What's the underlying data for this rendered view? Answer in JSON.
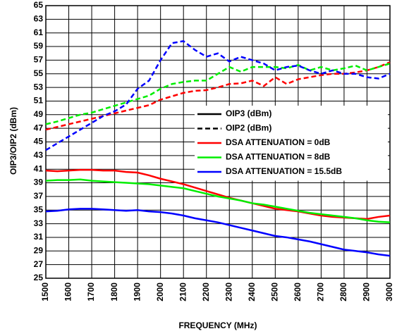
{
  "chart_data": {
    "type": "line",
    "xlabel": "FREQUENCY (MHz)",
    "ylabel": "OIP3/OIP2 (dBm)",
    "x": [
      1500,
      1550,
      1600,
      1650,
      1700,
      1750,
      1800,
      1850,
      1900,
      1950,
      2000,
      2050,
      2100,
      2150,
      2200,
      2250,
      2300,
      2350,
      2400,
      2450,
      2500,
      2550,
      2600,
      2650,
      2700,
      2750,
      2800,
      2850,
      2900,
      2950,
      3000
    ],
    "xlim": [
      1500,
      3000
    ],
    "xticks": [
      1500,
      1600,
      1700,
      1800,
      1900,
      2000,
      2100,
      2200,
      2300,
      2400,
      2500,
      2600,
      2700,
      2800,
      2900,
      3000
    ],
    "ylim": [
      25,
      65
    ],
    "yticks": [
      25,
      27,
      29,
      31,
      33,
      35,
      37,
      39,
      41,
      43,
      45,
      47,
      49,
      51,
      53,
      55,
      57,
      59,
      61,
      63,
      65
    ],
    "grid": true,
    "legend": [
      {
        "label": "OIP3 (dBm)",
        "color": "#000000",
        "dashed": false
      },
      {
        "label": "OIP2 (dBm)",
        "color": "#000000",
        "dashed": true
      },
      {
        "label": "DSA ATTENUATION = 0dB",
        "color": "#ff0000",
        "dashed": false
      },
      {
        "label": "DSA ATTENUATION = 8dB",
        "color": "#00ee00",
        "dashed": false
      },
      {
        "label": "DSA ATTENUATION = 15.5dB",
        "color": "#0000ff",
        "dashed": false
      }
    ],
    "series": [
      {
        "color": "#ff0000",
        "dashed": false,
        "values": [
          40.8,
          40.7,
          40.8,
          40.9,
          40.9,
          40.8,
          40.8,
          40.6,
          40.5,
          40.1,
          39.6,
          39.2,
          38.8,
          38.3,
          37.8,
          37.3,
          36.8,
          36.4,
          36.0,
          35.6,
          35.2,
          35.0,
          34.8,
          34.5,
          34.2,
          34.0,
          33.9,
          33.8,
          33.7,
          34.0,
          34.2
        ]
      },
      {
        "color": "#00ee00",
        "dashed": false,
        "values": [
          39.3,
          39.4,
          39.4,
          39.5,
          39.3,
          39.2,
          39.1,
          39.0,
          38.9,
          38.8,
          38.6,
          38.4,
          38.2,
          37.8,
          37.4,
          37.0,
          36.7,
          36.4,
          36.0,
          35.8,
          35.5,
          35.2,
          34.9,
          34.6,
          34.4,
          34.2,
          34.0,
          33.8,
          33.5,
          33.3,
          33.2
        ]
      },
      {
        "color": "#0000ff",
        "dashed": false,
        "values": [
          34.8,
          34.9,
          35.1,
          35.2,
          35.2,
          35.1,
          35.0,
          34.9,
          35.0,
          34.8,
          34.7,
          34.5,
          34.2,
          33.8,
          33.5,
          33.2,
          32.8,
          32.4,
          32.0,
          31.6,
          31.2,
          31.0,
          30.7,
          30.4,
          30.0,
          29.6,
          29.2,
          29.0,
          28.8,
          28.5,
          28.3
        ]
      },
      {
        "color": "#ff0000",
        "dashed": true,
        "values": [
          46.8,
          47.2,
          47.6,
          48.0,
          48.4,
          48.8,
          49.2,
          49.6,
          50.0,
          50.4,
          51.2,
          51.7,
          52.2,
          52.5,
          52.6,
          53.0,
          53.5,
          53.6,
          54.0,
          53.2,
          54.5,
          53.5,
          54.2,
          54.5,
          54.8,
          55.0,
          55.0,
          55.2,
          55.5,
          56.0,
          56.7
        ]
      },
      {
        "color": "#00ee00",
        "dashed": true,
        "values": [
          47.6,
          48.0,
          48.5,
          49.0,
          49.3,
          49.8,
          50.3,
          50.8,
          51.3,
          51.8,
          52.8,
          53.5,
          53.8,
          54.0,
          54.0,
          55.0,
          56.0,
          55.3,
          56.0,
          56.0,
          56.0,
          55.8,
          56.3,
          55.5,
          56.0,
          55.5,
          55.8,
          56.2,
          55.5,
          56.0,
          56.5
        ]
      },
      {
        "color": "#0000ff",
        "dashed": true,
        "values": [
          43.8,
          44.8,
          45.8,
          46.8,
          47.8,
          48.8,
          49.5,
          50.5,
          52.8,
          54.0,
          57.0,
          59.5,
          59.8,
          58.5,
          57.5,
          58.0,
          56.8,
          57.5,
          57.0,
          56.5,
          55.5,
          56.0,
          56.2,
          55.5,
          55.0,
          55.5,
          55.0,
          55.0,
          54.5,
          54.3,
          55.0
        ]
      }
    ]
  }
}
